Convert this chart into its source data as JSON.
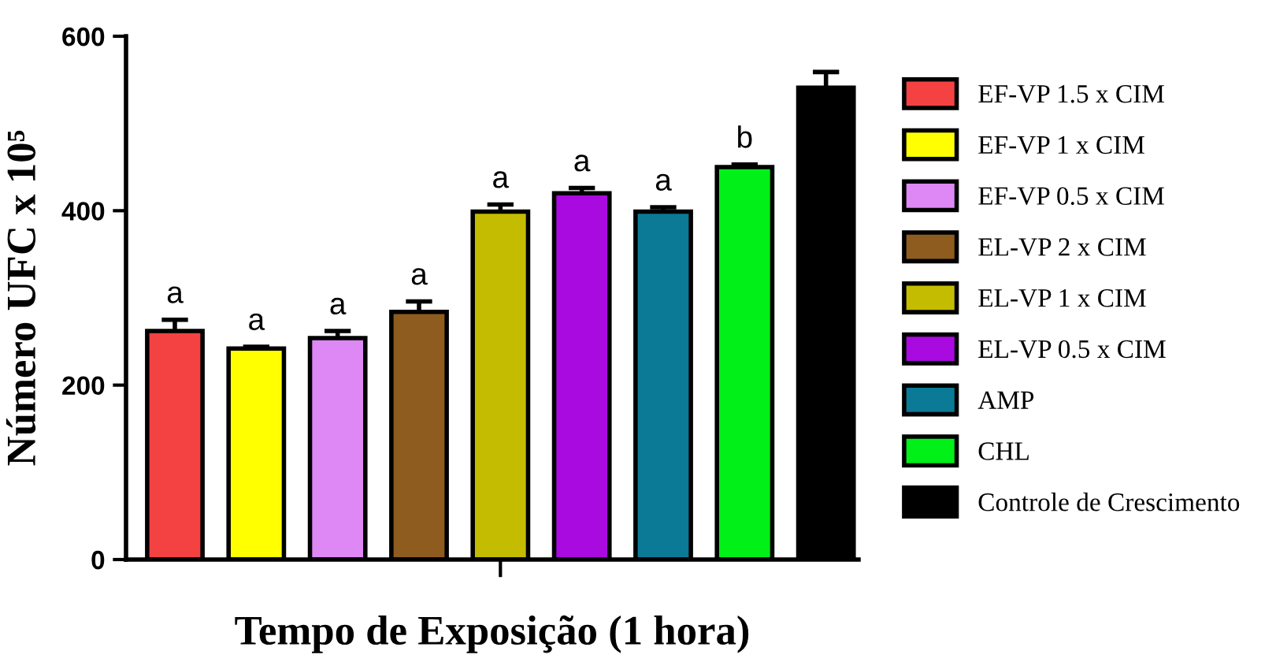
{
  "chart_data": {
    "type": "bar",
    "xlabel": "Tempo de Exposição (1 hora)",
    "ylabel": "Número UFC x 10⁵",
    "categories": [
      null
    ],
    "series": [
      {
        "name": "EF-VP 1.5 x CIM",
        "color": "#f44242",
        "values": [
          262
        ],
        "errors": [
          13
        ]
      },
      {
        "name": "EF-VP 1 x CIM",
        "color": "#ffff00",
        "values": [
          242
        ],
        "errors": [
          2
        ]
      },
      {
        "name": "EF-VP 0.5 x CIM",
        "color": "#dd88f4",
        "values": [
          254
        ],
        "errors": [
          8
        ]
      },
      {
        "name": "EL-VP 2 x CIM",
        "color": "#8e5c1e",
        "values": [
          284
        ],
        "errors": [
          12
        ]
      },
      {
        "name": "EL-VP 1 x CIM",
        "color": "#c4bc00",
        "values": [
          399
        ],
        "errors": [
          8
        ]
      },
      {
        "name": "EL-VP 0.5 x CIM",
        "color": "#a90ae0",
        "values": [
          420
        ],
        "errors": [
          6
        ]
      },
      {
        "name": "AMP",
        "color": "#0a7a96",
        "values": [
          399
        ],
        "errors": [
          5
        ]
      },
      {
        "name": "CHL",
        "color": "#00f018",
        "values": [
          450
        ],
        "errors": [
          3
        ]
      },
      {
        "name": "Controle de Crescimento",
        "color": "#000000",
        "values": [
          541
        ],
        "errors": [
          18
        ]
      }
    ],
    "annotations": [
      "a",
      "a",
      "a",
      "a",
      "a",
      "a",
      "a",
      "b"
    ],
    "ylim": [
      0,
      600
    ],
    "yticks": [
      0,
      200,
      400,
      600
    ],
    "grid": false,
    "legend": "right"
  }
}
